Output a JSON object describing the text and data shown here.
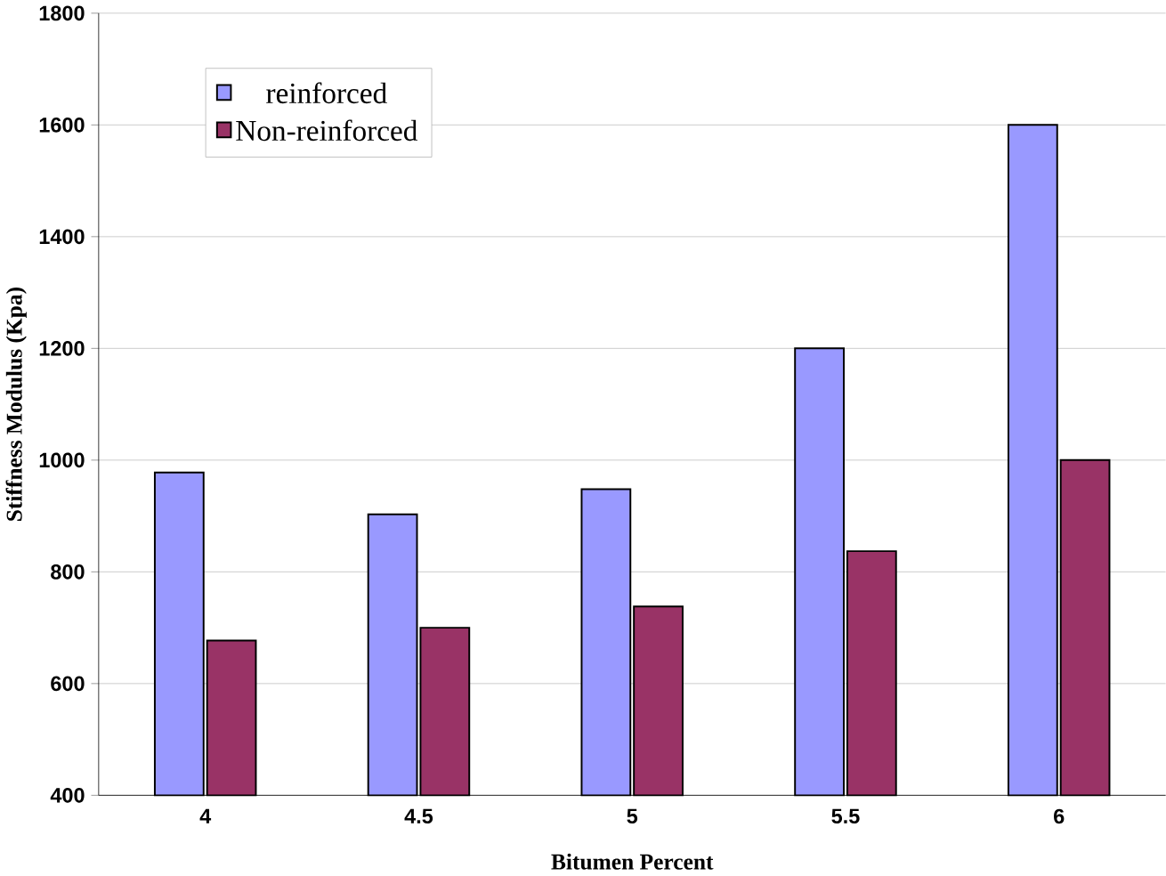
{
  "chart_data": {
    "type": "bar",
    "xlabel": "Bitumen Percent",
    "ylabel": "Stiffness Modulus (Kpa)",
    "categories": [
      "4",
      "4.5",
      "5",
      "5.5",
      "6"
    ],
    "series": [
      {
        "name": "reinforced",
        "color": "#9999ff",
        "values": [
          978,
          903,
          948,
          1200,
          1600
        ]
      },
      {
        "name": "Non-reinforced",
        "color": "#993366",
        "values": [
          677,
          700,
          738,
          837,
          1000
        ]
      }
    ],
    "ylim": [
      400,
      1800
    ],
    "yticks": [
      400,
      600,
      800,
      1000,
      1200,
      1400,
      1600,
      1800
    ],
    "grid": "y",
    "legend": "top left"
  }
}
